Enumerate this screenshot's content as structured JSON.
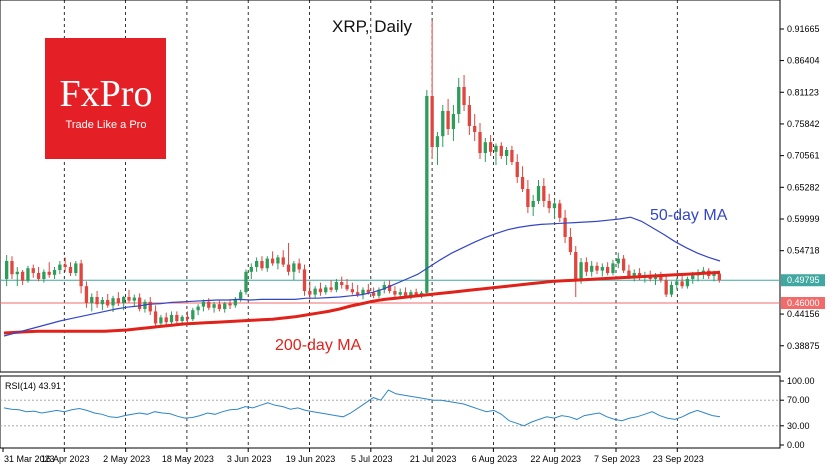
{
  "chart_data": {
    "type": "candlestick",
    "title": "XRP, Daily",
    "brand": {
      "name": "FxPro",
      "tagline": "Trade Like a Pro",
      "color": "#e41f26"
    },
    "colors": {
      "up": "#2e9c5a",
      "down": "#e0453f",
      "ma50": "#3346c8",
      "ma200": "#e0221b",
      "rsi": "#2f86c8",
      "last_price_line": "#40a7a1",
      "level_line": "#f26b6b"
    },
    "y_ticks": [
      0.91665,
      0.86404,
      0.81123,
      0.75842,
      0.70561,
      0.65282,
      0.59999,
      0.54718,
      0.49795,
      0.46,
      0.44156,
      0.38875
    ],
    "y_range": [
      0.355,
      0.955
    ],
    "date_labels": [
      "31 Mar 2023",
      "16 Apr 2023",
      "2 May 2023",
      "18 May 2023",
      "3 Jun 2023",
      "19 Jun 2023",
      "5 Jul 2023",
      "21 Jul 2023",
      "6 Aug 2023",
      "22 Aug 2023",
      "7 Sep 2023",
      "23 Sep 2023"
    ],
    "last_price": 0.49795,
    "level_line": 0.46,
    "annotations": {
      "ma50": "50-day MA",
      "ma200": "200-day MA"
    },
    "candles_ohlc": [
      [
        0.5,
        0.54,
        0.488,
        0.53
      ],
      [
        0.53,
        0.538,
        0.5,
        0.508
      ],
      [
        0.508,
        0.52,
        0.488,
        0.512
      ],
      [
        0.512,
        0.515,
        0.49,
        0.497
      ],
      [
        0.497,
        0.522,
        0.494,
        0.518
      ],
      [
        0.518,
        0.524,
        0.502,
        0.51
      ],
      [
        0.51,
        0.52,
        0.496,
        0.5
      ],
      [
        0.5,
        0.516,
        0.494,
        0.512
      ],
      [
        0.512,
        0.528,
        0.502,
        0.507
      ],
      [
        0.507,
        0.52,
        0.5,
        0.515
      ],
      [
        0.515,
        0.53,
        0.508,
        0.524
      ],
      [
        0.524,
        0.536,
        0.512,
        0.52
      ],
      [
        0.52,
        0.528,
        0.505,
        0.51
      ],
      [
        0.51,
        0.53,
        0.505,
        0.526
      ],
      [
        0.526,
        0.532,
        0.476,
        0.488
      ],
      [
        0.488,
        0.496,
        0.452,
        0.46
      ],
      [
        0.46,
        0.476,
        0.446,
        0.47
      ],
      [
        0.47,
        0.48,
        0.452,
        0.458
      ],
      [
        0.458,
        0.47,
        0.448,
        0.465
      ],
      [
        0.465,
        0.475,
        0.452,
        0.456
      ],
      [
        0.456,
        0.472,
        0.445,
        0.468
      ],
      [
        0.468,
        0.478,
        0.455,
        0.46
      ],
      [
        0.46,
        0.472,
        0.448,
        0.47
      ],
      [
        0.47,
        0.482,
        0.46,
        0.464
      ],
      [
        0.464,
        0.474,
        0.455,
        0.469
      ],
      [
        0.469,
        0.476,
        0.446,
        0.45
      ],
      [
        0.45,
        0.466,
        0.444,
        0.462
      ],
      [
        0.462,
        0.47,
        0.44,
        0.446
      ],
      [
        0.446,
        0.456,
        0.42,
        0.426
      ],
      [
        0.426,
        0.44,
        0.42,
        0.436
      ],
      [
        0.436,
        0.444,
        0.422,
        0.428
      ],
      [
        0.428,
        0.446,
        0.424,
        0.44
      ],
      [
        0.44,
        0.446,
        0.424,
        0.43
      ],
      [
        0.43,
        0.44,
        0.422,
        0.437
      ],
      [
        0.437,
        0.446,
        0.428,
        0.433
      ],
      [
        0.433,
        0.452,
        0.43,
        0.448
      ],
      [
        0.448,
        0.458,
        0.44,
        0.454
      ],
      [
        0.454,
        0.466,
        0.446,
        0.462
      ],
      [
        0.462,
        0.468,
        0.448,
        0.452
      ],
      [
        0.452,
        0.462,
        0.444,
        0.458
      ],
      [
        0.458,
        0.464,
        0.446,
        0.45
      ],
      [
        0.45,
        0.462,
        0.444,
        0.459
      ],
      [
        0.459,
        0.466,
        0.45,
        0.456
      ],
      [
        0.456,
        0.47,
        0.452,
        0.467
      ],
      [
        0.467,
        0.482,
        0.462,
        0.478
      ],
      [
        0.478,
        0.516,
        0.474,
        0.512
      ],
      [
        0.512,
        0.526,
        0.5,
        0.52
      ],
      [
        0.52,
        0.536,
        0.512,
        0.53
      ],
      [
        0.53,
        0.538,
        0.514,
        0.518
      ],
      [
        0.518,
        0.538,
        0.512,
        0.534
      ],
      [
        0.534,
        0.546,
        0.522,
        0.526
      ],
      [
        0.526,
        0.54,
        0.516,
        0.536
      ],
      [
        0.536,
        0.548,
        0.52,
        0.524
      ],
      [
        0.524,
        0.56,
        0.506,
        0.512
      ],
      [
        0.512,
        0.53,
        0.498,
        0.526
      ],
      [
        0.526,
        0.534,
        0.51,
        0.516
      ],
      [
        0.516,
        0.524,
        0.472,
        0.48
      ],
      [
        0.48,
        0.496,
        0.466,
        0.474
      ],
      [
        0.474,
        0.488,
        0.468,
        0.484
      ],
      [
        0.484,
        0.494,
        0.472,
        0.478
      ],
      [
        0.478,
        0.49,
        0.474,
        0.486
      ],
      [
        0.486,
        0.498,
        0.478,
        0.482
      ],
      [
        0.482,
        0.5,
        0.478,
        0.495
      ],
      [
        0.495,
        0.504,
        0.484,
        0.49
      ],
      [
        0.49,
        0.5,
        0.48,
        0.483
      ],
      [
        0.483,
        0.494,
        0.474,
        0.478
      ],
      [
        0.478,
        0.49,
        0.47,
        0.474
      ],
      [
        0.474,
        0.486,
        0.466,
        0.482
      ],
      [
        0.482,
        0.492,
        0.474,
        0.477
      ],
      [
        0.477,
        0.486,
        0.468,
        0.472
      ],
      [
        0.472,
        0.486,
        0.468,
        0.482
      ],
      [
        0.482,
        0.496,
        0.476,
        0.49
      ],
      [
        0.49,
        0.498,
        0.476,
        0.48
      ],
      [
        0.48,
        0.488,
        0.47,
        0.474
      ],
      [
        0.474,
        0.484,
        0.468,
        0.478
      ],
      [
        0.478,
        0.486,
        0.47,
        0.472
      ],
      [
        0.472,
        0.482,
        0.466,
        0.478
      ],
      [
        0.478,
        0.484,
        0.47,
        0.474
      ],
      [
        0.474,
        0.48,
        0.468,
        0.477
      ],
      [
        0.477,
        0.815,
        0.474,
        0.805
      ],
      [
        0.805,
        0.93,
        0.7,
        0.72
      ],
      [
        0.72,
        0.745,
        0.69,
        0.738
      ],
      [
        0.738,
        0.79,
        0.72,
        0.78
      ],
      [
        0.78,
        0.8,
        0.74,
        0.75
      ],
      [
        0.75,
        0.79,
        0.73,
        0.775
      ],
      [
        0.775,
        0.835,
        0.76,
        0.82
      ],
      [
        0.82,
        0.84,
        0.78,
        0.79
      ],
      [
        0.79,
        0.805,
        0.74,
        0.755
      ],
      [
        0.755,
        0.775,
        0.73,
        0.745
      ],
      [
        0.745,
        0.76,
        0.7,
        0.71
      ],
      [
        0.71,
        0.735,
        0.695,
        0.728
      ],
      [
        0.728,
        0.74,
        0.705,
        0.712
      ],
      [
        0.712,
        0.726,
        0.69,
        0.722
      ],
      [
        0.722,
        0.728,
        0.7,
        0.705
      ],
      [
        0.705,
        0.72,
        0.69,
        0.715
      ],
      [
        0.715,
        0.722,
        0.69,
        0.695
      ],
      [
        0.695,
        0.708,
        0.66,
        0.67
      ],
      [
        0.67,
        0.688,
        0.645,
        0.65
      ],
      [
        0.65,
        0.665,
        0.61,
        0.62
      ],
      [
        0.62,
        0.64,
        0.605,
        0.63
      ],
      [
        0.63,
        0.665,
        0.625,
        0.655
      ],
      [
        0.655,
        0.668,
        0.62,
        0.63
      ],
      [
        0.63,
        0.642,
        0.61,
        0.618
      ],
      [
        0.618,
        0.632,
        0.6,
        0.626
      ],
      [
        0.626,
        0.632,
        0.595,
        0.602
      ],
      [
        0.602,
        0.615,
        0.56,
        0.57
      ],
      [
        0.57,
        0.585,
        0.54,
        0.545
      ],
      [
        0.545,
        0.555,
        0.47,
        0.5
      ],
      [
        0.5,
        0.535,
        0.492,
        0.528
      ],
      [
        0.528,
        0.536,
        0.505,
        0.512
      ],
      [
        0.512,
        0.53,
        0.504,
        0.522
      ],
      [
        0.522,
        0.528,
        0.508,
        0.514
      ],
      [
        0.514,
        0.526,
        0.504,
        0.52
      ],
      [
        0.52,
        0.528,
        0.506,
        0.51
      ],
      [
        0.51,
        0.532,
        0.506,
        0.526
      ],
      [
        0.526,
        0.544,
        0.518,
        0.534
      ],
      [
        0.534,
        0.54,
        0.51,
        0.514
      ],
      [
        0.514,
        0.524,
        0.5,
        0.504
      ],
      [
        0.504,
        0.516,
        0.496,
        0.51
      ],
      [
        0.51,
        0.518,
        0.498,
        0.502
      ],
      [
        0.502,
        0.512,
        0.494,
        0.506
      ],
      [
        0.506,
        0.514,
        0.496,
        0.5
      ],
      [
        0.5,
        0.51,
        0.49,
        0.505
      ],
      [
        0.505,
        0.512,
        0.494,
        0.498
      ],
      [
        0.498,
        0.506,
        0.47,
        0.474
      ],
      [
        0.474,
        0.496,
        0.47,
        0.49
      ],
      [
        0.49,
        0.502,
        0.482,
        0.496
      ],
      [
        0.496,
        0.506,
        0.484,
        0.488
      ],
      [
        0.488,
        0.504,
        0.484,
        0.5
      ],
      [
        0.5,
        0.512,
        0.492,
        0.506
      ],
      [
        0.506,
        0.516,
        0.496,
        0.51
      ],
      [
        0.51,
        0.52,
        0.5,
        0.514
      ],
      [
        0.514,
        0.518,
        0.5,
        0.505
      ],
      [
        0.505,
        0.514,
        0.496,
        0.509
      ],
      [
        0.509,
        0.514,
        0.494,
        0.498
      ]
    ],
    "ma50": [
      0.405,
      0.41,
      0.415,
      0.42,
      0.425,
      0.43,
      0.434,
      0.438,
      0.442,
      0.446,
      0.45,
      0.453,
      0.455,
      0.458,
      0.459,
      0.461,
      0.462,
      0.463,
      0.464,
      0.465,
      0.465,
      0.466,
      0.465,
      0.466,
      0.466,
      0.466,
      0.466,
      0.468,
      0.468,
      0.469,
      0.47,
      0.472,
      0.474,
      0.478,
      0.484,
      0.492,
      0.5,
      0.508,
      0.52,
      0.532,
      0.543,
      0.552,
      0.561,
      0.569,
      0.576,
      0.582,
      0.586,
      0.589,
      0.591,
      0.592,
      0.593,
      0.594,
      0.595,
      0.596,
      0.598,
      0.6,
      0.603,
      0.596,
      0.585,
      0.574,
      0.562,
      0.552,
      0.543,
      0.536,
      0.53
    ],
    "ma200": [
      0.41,
      0.411,
      0.412,
      0.413,
      0.413,
      0.413,
      0.413,
      0.413,
      0.413,
      0.413,
      0.414,
      0.415,
      0.417,
      0.419,
      0.421,
      0.423,
      0.425,
      0.426,
      0.427,
      0.428,
      0.429,
      0.43,
      0.431,
      0.432,
      0.433,
      0.435,
      0.437,
      0.44,
      0.443,
      0.446,
      0.45,
      0.455,
      0.459,
      0.463,
      0.466,
      0.468,
      0.47,
      0.472,
      0.474,
      0.476,
      0.478,
      0.48,
      0.482,
      0.484,
      0.486,
      0.488,
      0.49,
      0.492,
      0.494,
      0.496,
      0.497,
      0.498,
      0.499,
      0.5,
      0.501,
      0.502,
      0.503,
      0.504,
      0.505,
      0.506,
      0.507,
      0.508,
      0.509,
      0.51,
      0.511
    ],
    "rsi": {
      "label": "RSI(14) 43.91",
      "levels": [
        100.0,
        70.0,
        30.0,
        0.0
      ],
      "values": [
        58,
        56,
        55,
        52,
        53,
        50,
        52,
        54,
        52,
        55,
        57,
        54,
        50,
        48,
        44,
        43,
        46,
        48,
        50,
        48,
        52,
        50,
        49,
        45,
        42,
        43,
        46,
        50,
        48,
        52,
        55,
        56,
        60,
        58,
        62,
        66,
        62,
        60,
        56,
        58,
        54,
        52,
        50,
        48,
        46,
        44,
        50,
        58,
        66,
        74,
        70,
        86,
        80,
        78,
        76,
        74,
        72,
        70,
        70,
        68,
        66,
        64,
        60,
        56,
        52,
        54,
        48,
        38,
        34,
        30,
        36,
        40,
        44,
        42,
        46,
        44,
        40,
        46,
        48,
        50,
        44,
        40,
        38,
        42,
        44,
        48,
        52,
        46,
        42,
        40,
        44,
        50,
        54,
        50,
        46,
        44
      ]
    }
  }
}
